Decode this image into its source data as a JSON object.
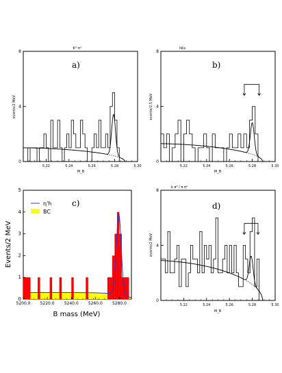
{
  "chart_data": [
    {
      "type": "bar",
      "panel_title": "K° π⁺",
      "panel_label": "a)",
      "xlabel": "M_B",
      "ylabel": "events/2 MeV",
      "xlim": [
        5.2,
        5.3
      ],
      "ylim": [
        0,
        8
      ],
      "yticks": [
        "0",
        "4",
        "8"
      ],
      "xticks": [
        "5.22",
        "5.24",
        "5.26",
        "5.28",
        "5.30"
      ],
      "bin_width": 0.002,
      "counts": [
        1,
        1,
        0,
        1,
        1,
        1,
        0,
        1,
        1,
        2,
        1,
        0,
        3,
        1,
        1,
        3,
        1,
        0,
        1,
        2,
        1,
        3,
        2,
        1,
        1,
        3,
        2,
        1,
        0,
        0,
        1,
        2,
        1,
        3,
        1,
        1,
        2,
        1,
        4,
        5,
        3,
        1,
        0,
        0,
        0,
        0,
        0,
        0,
        0,
        0
      ],
      "background_level": 1.0,
      "peak": {
        "mean": 5.279,
        "sigma": 0.0017,
        "amplitude": 3.0
      }
    },
    {
      "type": "bar",
      "panel_title": "hKs",
      "panel_label": "b)",
      "xlabel": "M_B",
      "ylabel": "events/2.5 MeV",
      "xlim": [
        5.2,
        5.3
      ],
      "ylim": [
        0,
        8
      ],
      "yticks": [
        "0",
        "4",
        "8"
      ],
      "xticks": [
        "5.22",
        "5.24",
        "5.26",
        "5.28",
        "5.30"
      ],
      "bin_width": 0.0025,
      "counts": [
        2,
        1,
        2,
        0,
        1,
        2,
        3,
        0,
        2,
        3,
        2,
        1,
        0,
        1,
        1,
        2,
        1,
        0,
        2,
        1,
        1,
        1,
        0,
        1,
        2,
        1,
        1,
        2,
        1,
        2,
        1,
        3,
        4,
        2,
        0,
        0,
        0,
        0,
        0,
        0
      ],
      "background_level": 1.3,
      "peak": {
        "mean": 5.28,
        "sigma": 0.0017,
        "amplitude": 2.3
      },
      "signal_window": [
        5.273,
        5.286
      ]
    },
    {
      "type": "bar",
      "panel_label": "c)",
      "xlabel": "B mass (MeV)",
      "ylabel": "Events/2 MeV",
      "xlim": [
        5200.0,
        5290.0
      ],
      "ylim": [
        0,
        5
      ],
      "yticks": [
        "0",
        "1",
        "2",
        "3",
        "4",
        "5"
      ],
      "xticks": [
        "5200.0",
        "5220.0",
        "5240.0",
        "5260.0",
        "5280.0"
      ],
      "series": [
        {
          "name": "η'h",
          "type": "line",
          "peak": {
            "mean": 5279.5,
            "sigma": 2.0,
            "amplitude": 3.7
          }
        },
        {
          "name": "BC",
          "type": "area",
          "level": 0.3
        }
      ],
      "bars": [
        {
          "x0": 5200,
          "x1": 5202,
          "value": 1
        },
        {
          "x0": 5202,
          "x1": 5204,
          "value": 1
        },
        {
          "x0": 5204,
          "x1": 5206,
          "value": 1
        },
        {
          "x0": 5212,
          "x1": 5214,
          "value": 1
        },
        {
          "x0": 5222,
          "x1": 5224,
          "value": 1
        },
        {
          "x0": 5230,
          "x1": 5232,
          "value": 1
        },
        {
          "x0": 5240,
          "x1": 5242,
          "value": 1
        },
        {
          "x0": 5252,
          "x1": 5254,
          "value": 1
        },
        {
          "x0": 5270,
          "x1": 5272,
          "value": 1
        },
        {
          "x0": 5272,
          "x1": 5274,
          "value": 1
        },
        {
          "x0": 5274,
          "x1": 5276,
          "value": 2
        },
        {
          "x0": 5276,
          "x1": 5278,
          "value": 3
        },
        {
          "x0": 5278,
          "x1": 5280,
          "value": 4
        },
        {
          "x0": 5280,
          "x1": 5282,
          "value": 3
        },
        {
          "x0": 5282,
          "x1": 5284,
          "value": 1
        },
        {
          "x0": 5284,
          "x1": 5286,
          "value": 1
        },
        {
          "x0": 5286,
          "x1": 5288,
          "value": 1
        }
      ],
      "legend": "top-left",
      "colors": {
        "bars": "#ff0000",
        "background": "#ffff00",
        "fit": "#3333cc"
      }
    },
    {
      "type": "bar",
      "panel_title": "k π⁰ / π π⁰",
      "panel_label": "d)",
      "xlabel": "M_B",
      "ylabel": "events/2 MeV",
      "xlim": [
        5.2,
        5.3
      ],
      "ylim": [
        0,
        8
      ],
      "yticks": [
        "0",
        "4",
        "8"
      ],
      "xticks": [
        "5.22",
        "5.24",
        "5.26",
        "5.28",
        "5.30"
      ],
      "bin_width": 0.002,
      "counts": [
        3,
        3,
        2,
        5,
        2,
        2,
        3,
        4,
        1,
        3,
        3,
        1,
        2,
        4,
        3,
        3,
        2,
        5,
        2,
        4,
        3,
        4,
        2,
        3,
        6,
        2,
        2,
        3,
        4,
        2,
        4,
        2,
        4,
        2,
        1,
        1,
        4,
        3,
        2,
        5,
        6,
        1,
        3,
        0,
        0,
        0,
        0,
        0,
        0,
        0
      ],
      "background_level": 2.9,
      "peak": {
        "mean": 5.279,
        "sigma": 0.0017,
        "amplitude": 2.0
      },
      "signal_window": [
        5.273,
        5.285
      ]
    }
  ]
}
